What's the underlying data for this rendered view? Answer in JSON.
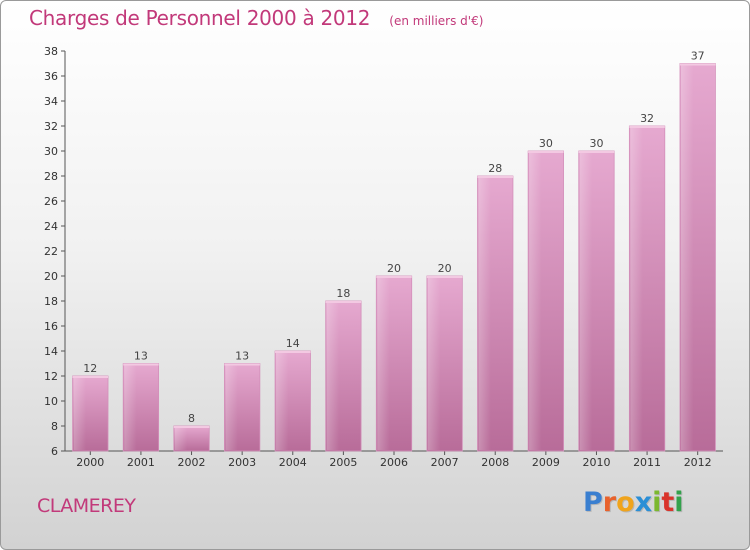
{
  "header": {
    "title": "Charges de Personnel 2000 à 2012",
    "subtitle": "(en milliers d'€)"
  },
  "footer": {
    "city": "CLAMEREY",
    "logo": "Proxiti"
  },
  "colors": {
    "title": "#c2397a",
    "bar_light": "#e6a9d0",
    "bar_dark": "#b86c99",
    "logo_letters": [
      "#3a7fd0",
      "#e8622c",
      "#f0a41c",
      "#2b8fd6",
      "#7cb82f",
      "#d9342b",
      "#33a24c"
    ]
  },
  "chart_data": {
    "type": "bar",
    "title": "Charges de Personnel 2000 à 2012",
    "subtitle": "(en milliers d'€)",
    "categories": [
      "2000",
      "2001",
      "2002",
      "2003",
      "2004",
      "2005",
      "2006",
      "2007",
      "2008",
      "2009",
      "2010",
      "2011",
      "2012"
    ],
    "values": [
      12,
      13,
      8,
      13,
      14,
      18,
      20,
      20,
      28,
      30,
      30,
      32,
      37
    ],
    "ylim": [
      6,
      38
    ],
    "yticks": [
      6,
      8,
      10,
      12,
      14,
      16,
      18,
      20,
      22,
      24,
      26,
      28,
      30,
      32,
      34,
      36,
      38
    ],
    "grid": false,
    "data_labels": true
  }
}
